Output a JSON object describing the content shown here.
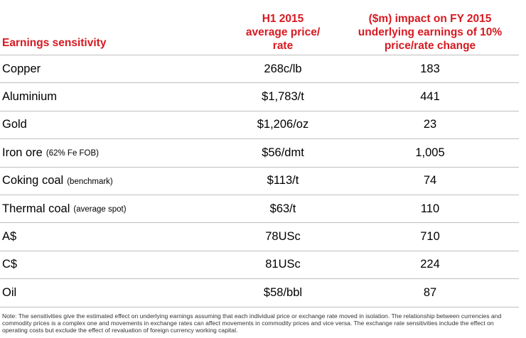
{
  "table": {
    "headers": {
      "label": "Earnings sensitivity",
      "price_line1": "H1 2015",
      "price_line2": "average price/",
      "price_line3": "rate",
      "impact_line1": "($m) impact on FY 2015",
      "impact_line2": "underlying earnings of 10%",
      "impact_line3": "price/rate change"
    },
    "rows": [
      {
        "label": "Copper",
        "qualifier": "",
        "price": "268c/lb",
        "impact": "183"
      },
      {
        "label": "Aluminium",
        "qualifier": "",
        "price": "$1,783/t",
        "impact": "441"
      },
      {
        "label": "Gold",
        "qualifier": "",
        "price": "$1,206/oz",
        "impact": "23"
      },
      {
        "label": "Iron ore",
        "qualifier": "(62% Fe FOB)",
        "price": "$56/dmt",
        "impact": "1,005"
      },
      {
        "label": "Coking coal",
        "qualifier": "(benchmark)",
        "price": "$113/t",
        "impact": "74"
      },
      {
        "label": "Thermal coal",
        "qualifier": "(average spot)",
        "price": "$63/t",
        "impact": "110"
      },
      {
        "label": "A$",
        "qualifier": "",
        "price": "78USc",
        "impact": "710"
      },
      {
        "label": "C$",
        "qualifier": "",
        "price": "81USc",
        "impact": "224"
      },
      {
        "label": "Oil",
        "qualifier": "",
        "price": "$58/bbl",
        "impact": "87"
      }
    ]
  },
  "note": "Note: The sensitivities give the estimated effect on underlying earnings assuming that each individual price or exchange rate moved in isolation. The relationship between currencies and commodity prices is a complex one and movements in exchange rates can affect movements in commodity prices and vice versa. The exchange rate sensitivities include the effect on operating costs but exclude the effect of revaluation of foreign currency working capital."
}
